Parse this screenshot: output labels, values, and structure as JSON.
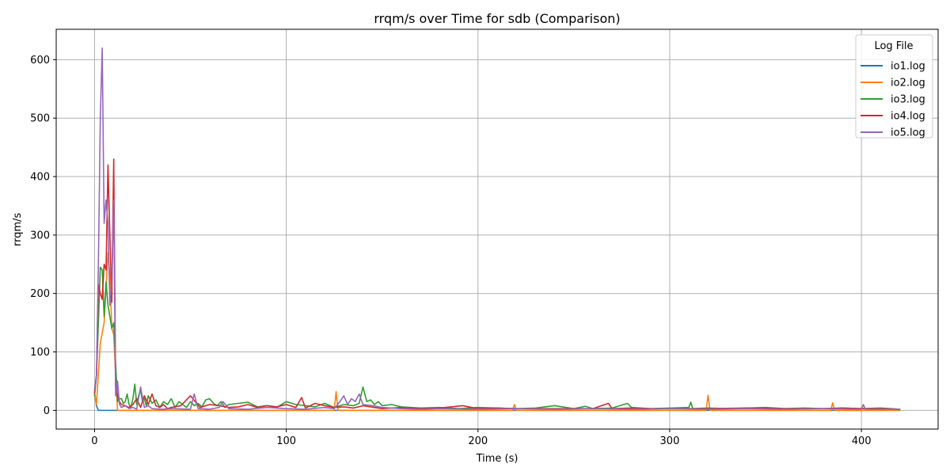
{
  "chart_data": {
    "type": "line",
    "title": "rrqm/s over Time for sdb (Comparison)",
    "xlabel": "Time (s)",
    "ylabel": "rrqm/s",
    "xlim": [
      -20,
      440
    ],
    "ylim": [
      -32,
      652
    ],
    "xticks": [
      0,
      100,
      200,
      300,
      400
    ],
    "yticks": [
      0,
      100,
      200,
      300,
      400,
      500,
      600
    ],
    "grid": true,
    "legend": {
      "title": "Log File",
      "placement": "top-right"
    },
    "series": [
      {
        "name": "io1.log",
        "color": "#1f77b4",
        "x": [
          0,
          1,
          2,
          5,
          10,
          20,
          50,
          100,
          150,
          200,
          250,
          300,
          350,
          400,
          420
        ],
        "y": [
          30,
          8,
          0,
          0,
          0,
          0,
          0,
          0,
          0,
          0,
          0,
          0,
          0,
          0,
          0
        ]
      },
      {
        "name": "io2.log",
        "color": "#ff7f0e",
        "x": [
          0,
          1,
          3,
          5,
          7,
          8,
          9,
          10,
          11,
          12,
          14,
          20,
          30,
          60,
          100,
          125,
          126,
          127,
          140,
          160,
          200,
          218,
          219,
          220,
          260,
          319,
          320,
          321,
          360,
          384,
          385,
          386,
          400,
          420
        ],
        "y": [
          30,
          10,
          115,
          150,
          270,
          230,
          140,
          130,
          60,
          0,
          0,
          0,
          0,
          0,
          0,
          0,
          32,
          0,
          0,
          0,
          0,
          0,
          10,
          0,
          0,
          0,
          26,
          0,
          0,
          0,
          13,
          0,
          0,
          0
        ]
      },
      {
        "name": "io3.log",
        "color": "#2ca02c",
        "x": [
          0,
          1,
          2,
          3,
          4,
          5,
          6,
          7,
          8,
          9,
          10,
          11,
          12,
          13,
          14,
          15,
          16,
          17,
          18,
          19,
          20,
          21,
          22,
          23,
          24,
          25,
          26,
          27,
          28,
          30,
          32,
          34,
          36,
          38,
          40,
          42,
          44,
          46,
          48,
          50,
          52,
          54,
          56,
          58,
          60,
          62,
          64,
          66,
          68,
          70,
          75,
          80,
          85,
          90,
          95,
          100,
          105,
          110,
          115,
          120,
          125,
          130,
          135,
          138,
          140,
          142,
          144,
          146,
          148,
          150,
          155,
          160,
          165,
          170,
          180,
          190,
          200,
          210,
          220,
          230,
          240,
          250,
          256,
          260,
          270,
          278,
          280,
          290,
          300,
          310,
          311,
          312,
          320,
          330,
          340,
          350,
          360,
          370,
          380,
          390,
          400,
          410,
          420
        ],
        "y": [
          25,
          60,
          150,
          245,
          240,
          160,
          220,
          180,
          160,
          140,
          150,
          80,
          15,
          20,
          20,
          12,
          15,
          28,
          10,
          5,
          20,
          45,
          10,
          25,
          35,
          15,
          20,
          8,
          25,
          12,
          18,
          5,
          15,
          10,
          20,
          5,
          15,
          10,
          5,
          15,
          8,
          12,
          6,
          18,
          20,
          12,
          8,
          15,
          5,
          10,
          12,
          14,
          6,
          8,
          5,
          15,
          10,
          8,
          6,
          12,
          5,
          10,
          8,
          12,
          40,
          15,
          18,
          10,
          15,
          8,
          10,
          6,
          5,
          4,
          5,
          3,
          5,
          4,
          3,
          4,
          8,
          3,
          7,
          3,
          4,
          12,
          5,
          3,
          4,
          5,
          14,
          3,
          4,
          3,
          4,
          5,
          3,
          4,
          3,
          4,
          3,
          4,
          2
        ]
      },
      {
        "name": "io4.log",
        "color": "#d62728",
        "x": [
          0,
          1,
          2,
          3,
          4,
          5,
          6,
          7,
          8,
          9,
          10,
          11,
          12,
          13,
          14,
          16,
          18,
          20,
          22,
          24,
          26,
          28,
          30,
          32,
          34,
          36,
          38,
          40,
          45,
          50,
          55,
          60,
          65,
          70,
          75,
          80,
          85,
          90,
          95,
          100,
          105,
          108,
          110,
          115,
          120,
          125,
          130,
          135,
          140,
          150,
          160,
          170,
          180,
          192,
          200,
          210,
          220,
          240,
          260,
          268,
          270,
          280,
          290,
          300,
          320,
          340,
          360,
          380,
          390,
          400,
          410,
          420
        ],
        "y": [
          30,
          60,
          215,
          200,
          190,
          250,
          240,
          420,
          300,
          185,
          430,
          40,
          25,
          15,
          10,
          8,
          5,
          10,
          20,
          5,
          25,
          10,
          28,
          8,
          5,
          10,
          3,
          5,
          8,
          25,
          5,
          10,
          8,
          5,
          6,
          10,
          5,
          8,
          6,
          10,
          5,
          22,
          4,
          12,
          8,
          5,
          6,
          4,
          8,
          3,
          5,
          3,
          4,
          8,
          3,
          4,
          3,
          3,
          3,
          12,
          3,
          4,
          3,
          3,
          3,
          4,
          3,
          3,
          4,
          3,
          3,
          2
        ]
      },
      {
        "name": "io5.log",
        "color": "#9467bd",
        "x": [
          0,
          1,
          2,
          3,
          4,
          5,
          6,
          7,
          8,
          9,
          10,
          11,
          12,
          13,
          14,
          16,
          18,
          20,
          22,
          24,
          26,
          28,
          30,
          35,
          40,
          50,
          52,
          54,
          60,
          65,
          67,
          70,
          80,
          90,
          100,
          110,
          120,
          125,
          128,
          130,
          132,
          134,
          136,
          138,
          140,
          145,
          150,
          160,
          170,
          180,
          200,
          220,
          240,
          260,
          280,
          300,
          320,
          340,
          360,
          380,
          400,
          401,
          402,
          410,
          420
        ],
        "y": [
          35,
          60,
          250,
          500,
          620,
          320,
          360,
          320,
          180,
          220,
          360,
          25,
          50,
          10,
          5,
          8,
          3,
          5,
          2,
          40,
          5,
          8,
          3,
          2,
          3,
          2,
          28,
          3,
          2,
          5,
          15,
          3,
          2,
          5,
          3,
          2,
          5,
          3,
          15,
          25,
          10,
          20,
          15,
          28,
          10,
          8,
          5,
          3,
          2,
          3,
          2,
          3,
          2,
          3,
          2,
          3,
          2,
          3,
          2,
          3,
          2,
          10,
          2,
          2,
          2
        ]
      }
    ]
  }
}
